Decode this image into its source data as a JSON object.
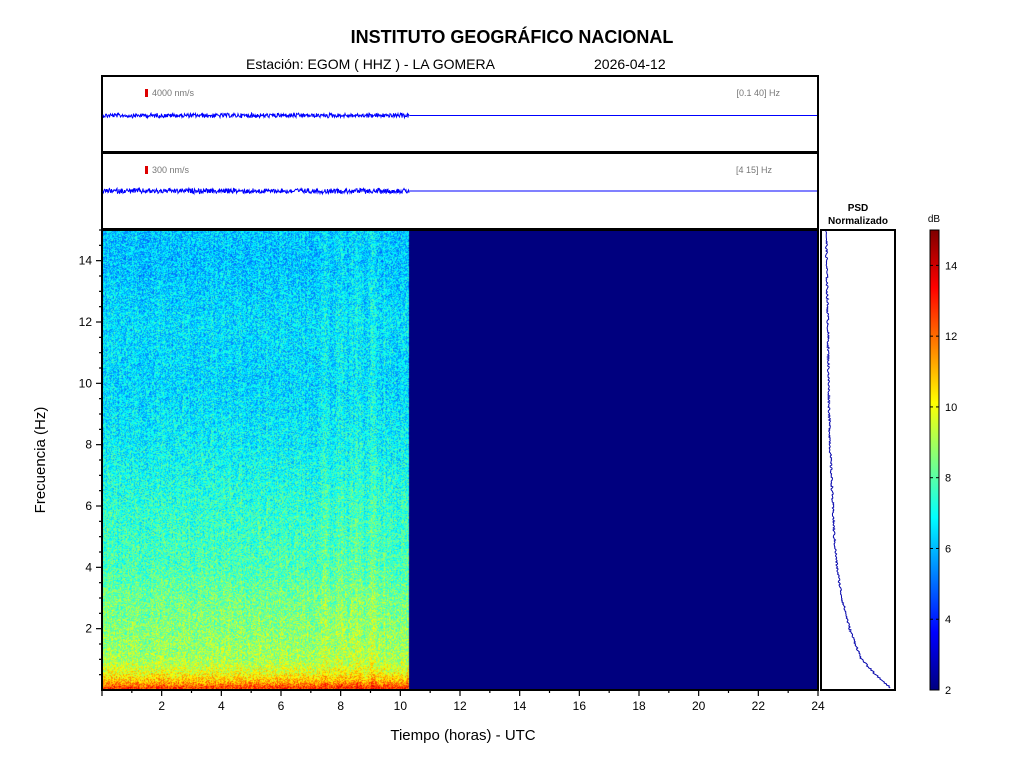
{
  "header": {
    "title": "INSTITUTO GEOGRÁFICO NACIONAL",
    "station": "Estación:  EGOM ( HHZ ) - LA GOMERA",
    "date": "2026-04-12"
  },
  "chart_data": [
    {
      "type": "line",
      "name": "trace-broadband",
      "amplitude_label": "4000 nm/s",
      "band_label": "[0.1 40] Hz",
      "x_range_hours": [
        0,
        24
      ],
      "data_until_hours": 10.3,
      "color": "#0000ff"
    },
    {
      "type": "line",
      "name": "trace-filtered",
      "amplitude_label": "300 nm/s",
      "band_label": "[4 15] Hz",
      "x_range_hours": [
        0,
        24
      ],
      "data_until_hours": 10.3,
      "color": "#0000ff"
    },
    {
      "type": "heatmap",
      "name": "spectrogram",
      "xlabel": "Tiempo (horas) - UTC",
      "ylabel": "Frecuencia  (Hz)",
      "xlim": [
        0,
        24
      ],
      "ylim": [
        0,
        15
      ],
      "xticks": [
        2,
        4,
        6,
        8,
        10,
        12,
        14,
        16,
        18,
        20,
        22,
        24
      ],
      "yticks": [
        2,
        4,
        6,
        8,
        10,
        12,
        14
      ],
      "data_until_hours": 10.3,
      "colormap": "jet",
      "empty_color": "#00007f",
      "frequency_profile_db": [
        {
          "f": 0.1,
          "db": 12.5
        },
        {
          "f": 0.3,
          "db": 11.0
        },
        {
          "f": 0.6,
          "db": 9.8
        },
        {
          "f": 1.0,
          "db": 9.0
        },
        {
          "f": 2.0,
          "db": 8.6
        },
        {
          "f": 3.0,
          "db": 8.3
        },
        {
          "f": 4.0,
          "db": 7.8
        },
        {
          "f": 6.0,
          "db": 7.4
        },
        {
          "f": 8.0,
          "db": 6.8
        },
        {
          "f": 10.0,
          "db": 6.4
        },
        {
          "f": 12.0,
          "db": 6.5
        },
        {
          "f": 14.0,
          "db": 6.1
        },
        {
          "f": 15.0,
          "db": 6.2
        }
      ]
    },
    {
      "type": "line",
      "name": "psd",
      "title": "PSD\nNormalizado",
      "title_line1": "PSD",
      "title_line2": "Normalizado",
      "color": "#0000aa",
      "profile": [
        {
          "f": 0.1,
          "v": 0.95
        },
        {
          "f": 0.5,
          "v": 0.75
        },
        {
          "f": 1.0,
          "v": 0.55
        },
        {
          "f": 2.0,
          "v": 0.38
        },
        {
          "f": 3.0,
          "v": 0.27
        },
        {
          "f": 4.0,
          "v": 0.2
        },
        {
          "f": 5.0,
          "v": 0.16
        },
        {
          "f": 6.0,
          "v": 0.14
        },
        {
          "f": 8.0,
          "v": 0.1
        },
        {
          "f": 10.0,
          "v": 0.08
        },
        {
          "f": 12.0,
          "v": 0.07
        },
        {
          "f": 14.0,
          "v": 0.05
        },
        {
          "f": 15.0,
          "v": 0.05
        }
      ]
    },
    {
      "type": "heatmap",
      "name": "colorbar",
      "label": "dB",
      "range": [
        2,
        15
      ],
      "ticks": [
        2,
        4,
        6,
        8,
        10,
        12,
        14
      ]
    }
  ]
}
